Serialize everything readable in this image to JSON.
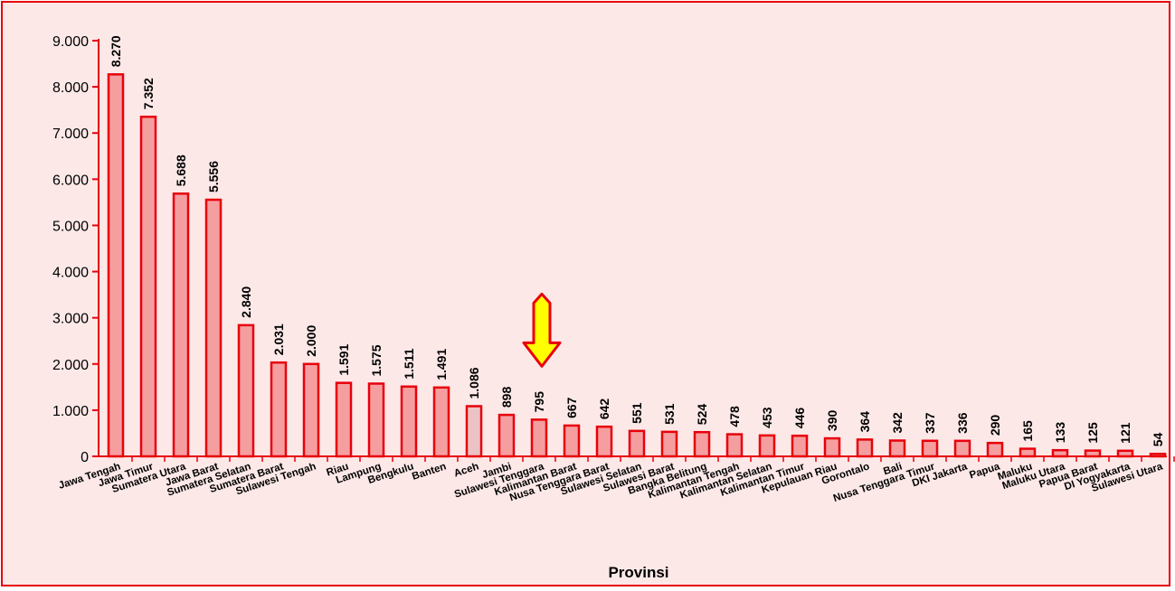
{
  "chart_data": {
    "type": "bar",
    "title": "",
    "xlabel": "Provinsi",
    "ylabel": "",
    "ylim": [
      0,
      9000
    ],
    "yticks": [
      0,
      1000,
      2000,
      3000,
      4000,
      5000,
      6000,
      7000,
      8000,
      9000
    ],
    "ytick_labels": [
      "0",
      "1.000",
      "2.000",
      "3.000",
      "4.000",
      "5.000",
      "6.000",
      "7.000",
      "8.000",
      "9.000"
    ],
    "categories": [
      "Jawa Tengah",
      "Jawa Timur",
      "Sumatera Utara",
      "Jawa Barat",
      "Sumatera Selatan",
      "Sumatera Barat",
      "Sulawesi Tengah",
      "Riau",
      "Lampung",
      "Bengkulu",
      "Banten",
      "Aceh",
      "Jambi",
      "Sulawesi Tenggara",
      "Kalimantan Barat",
      "Nusa Tenggara Barat",
      "Sulawesi Selatan",
      "Sulawesi Barat",
      "Bangka Belitung",
      "Kalimantan Tengah",
      "Kalimantan Selatan",
      "Kalimantan Timur",
      "Kepulauan Riau",
      "Gorontalo",
      "Bali",
      "Nusa Tenggara Timur",
      "DKI Jakarta",
      "Papua",
      "Maluku",
      "Maluku Utara",
      "Papua Barat",
      "DI Yogyakarta",
      "Sulawesi Utara"
    ],
    "values": [
      8270,
      7352,
      5688,
      5556,
      2840,
      2031,
      2000,
      1591,
      1575,
      1511,
      1491,
      1086,
      898,
      795,
      667,
      642,
      551,
      531,
      524,
      478,
      453,
      446,
      390,
      364,
      342,
      337,
      336,
      290,
      165,
      133,
      125,
      121,
      54
    ],
    "value_labels": [
      "8.270",
      "7.352",
      "5.688",
      "5.556",
      "2.840",
      "2.031",
      "2.000",
      "1.591",
      "1.575",
      "1.511",
      "1.491",
      "1.086",
      "898",
      "795",
      "667",
      "642",
      "551",
      "531",
      "524",
      "478",
      "453",
      "446",
      "390",
      "364",
      "342",
      "337",
      "336",
      "290",
      "165",
      "133",
      "125",
      "121",
      "54"
    ],
    "highlight_category": "Sulawesi Tenggara",
    "highlight_marker": "down-arrow-icon",
    "grid": false,
    "legend": "none",
    "colors": {
      "background": "#fde8e8",
      "border": "#e8000b",
      "bar_fill": "#f59ea0",
      "bar_stroke": "#e8000b",
      "aceh_fill": "#ecc3c4",
      "axis": "#e8000b",
      "arrow_fill": "#ffff00",
      "arrow_stroke": "#e8000b"
    }
  }
}
